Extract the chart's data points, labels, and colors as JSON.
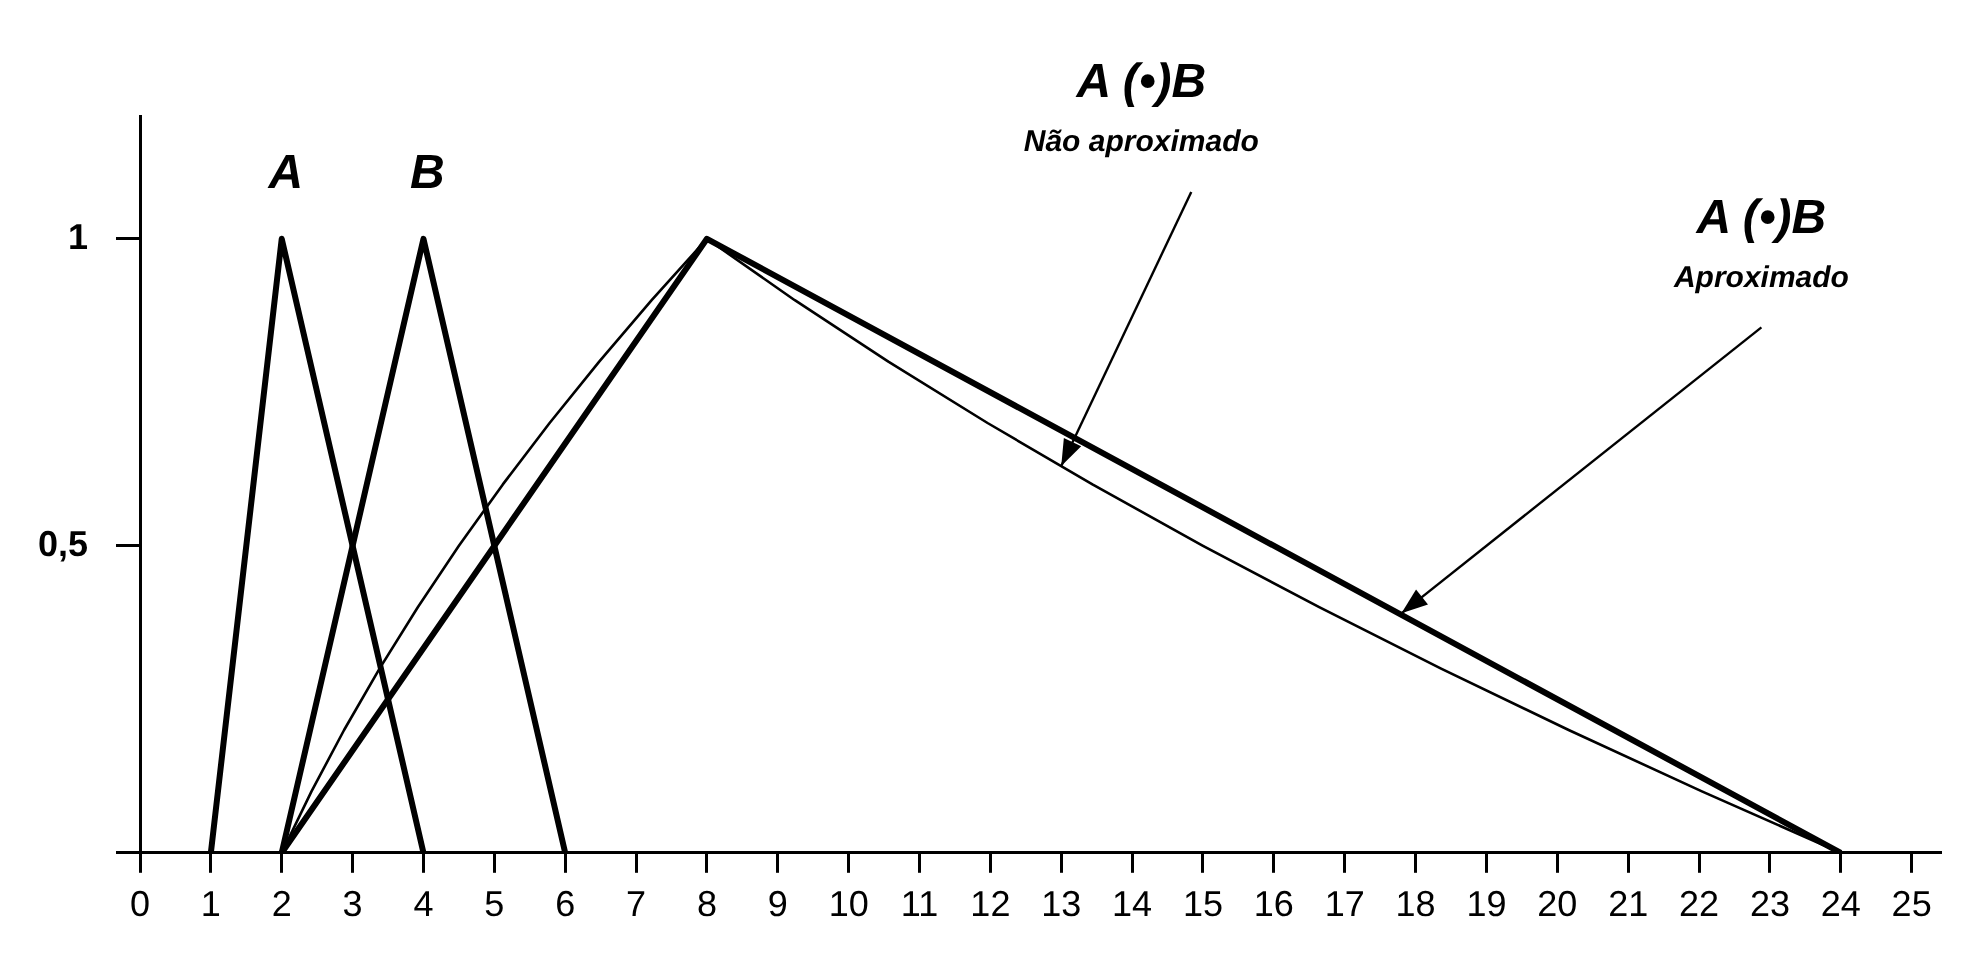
{
  "chart_data": {
    "type": "line",
    "xlim": [
      0,
      25.4
    ],
    "xticks": [
      0,
      1,
      2,
      3,
      4,
      5,
      6,
      7,
      8,
      9,
      10,
      11,
      12,
      13,
      14,
      15,
      16,
      17,
      18,
      19,
      20,
      21,
      22,
      23,
      24,
      25
    ],
    "ylim": [
      0,
      1.2
    ],
    "yticks": [
      {
        "value": 0,
        "label": null
      },
      {
        "value": 0.5,
        "label": "0,5"
      },
      1
    ],
    "grid": false,
    "legend": false,
    "marker": "none",
    "line_style": "solid",
    "series": [
      {
        "name": "A",
        "color": "#000000",
        "x": [
          1,
          2,
          4
        ],
        "values": [
          0,
          1,
          0
        ]
      },
      {
        "name": "B",
        "color": "#000000",
        "x": [
          2,
          4,
          6
        ],
        "values": [
          0,
          1,
          0
        ]
      },
      {
        "color": "#000000",
        "x": [
          2,
          8,
          24
        ],
        "values": [
          0,
          1,
          0
        ]
      },
      {
        "color": "#000000",
        "x": [
          2,
          2.42,
          2.88,
          3.38,
          3.92,
          4.5,
          5.12,
          5.78,
          6.48,
          7.22,
          8,
          9.24,
          10.56,
          11.96,
          13.44,
          15,
          16.64,
          18.36,
          20.16,
          22.04,
          24
        ],
        "values": [
          0,
          0.1,
          0.2,
          0.3,
          0.4,
          0.5,
          0.6,
          0.7,
          0.8,
          0.9,
          1,
          0.9,
          0.8,
          0.7,
          0.6,
          0.5,
          0.4,
          0.3,
          0.2,
          0.1,
          0
        ]
      }
    ],
    "annotations": [
      {
        "text": "A (•)B\nNão aproximado",
        "x": 13,
        "y": 0.63
      },
      {
        "text": "A (•)B\nAproximado",
        "x": 17.8,
        "y": 0.39
      }
    ]
  }
}
